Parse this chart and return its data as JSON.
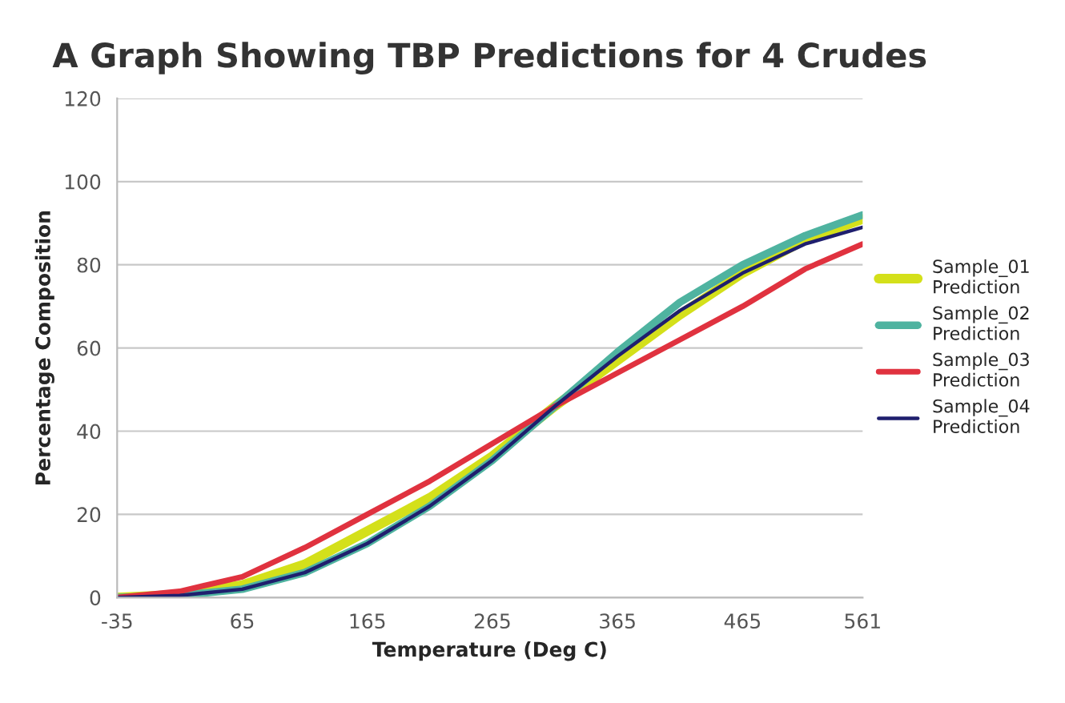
{
  "chart_data": {
    "type": "line",
    "title": "A Graph Showing TBP Predictions for 4 Crudes",
    "xlabel": "Temperature (Deg C)",
    "ylabel": "Percentage Composition",
    "x": [
      -35,
      15,
      65,
      115,
      165,
      215,
      265,
      315,
      365,
      415,
      465,
      515,
      561
    ],
    "series": [
      {
        "name": "Sample_01\nPrediction",
        "color": "#d4e01a",
        "values": [
          0,
          0.7,
          3,
          8,
          16,
          24,
          34,
          46,
          57,
          68,
          78,
          86,
          91
        ]
      },
      {
        "name": "Sample_02\nPrediction",
        "color": "#4fb3a0",
        "values": [
          0,
          0.5,
          2,
          6,
          13,
          22,
          33,
          46,
          59,
          71,
          80,
          87,
          92
        ]
      },
      {
        "name": "Sample_03\nPrediction",
        "color": "#e0323f",
        "values": [
          0,
          1.5,
          5,
          12,
          20,
          28,
          37,
          46,
          54,
          62,
          70,
          79,
          85
        ]
      },
      {
        "name": "Sample_04\nPrediction",
        "color": "#1f1f6e",
        "values": [
          0,
          0.5,
          2,
          6,
          13,
          22,
          33,
          46,
          58,
          69,
          78,
          85,
          89
        ]
      }
    ],
    "xlim": [
      -35,
      561
    ],
    "xticks": [
      -35,
      65,
      165,
      265,
      365,
      465,
      561
    ],
    "ylim": [
      0,
      120
    ],
    "yticks": [
      0,
      20,
      40,
      60,
      80,
      100,
      120
    ],
    "grid": "y",
    "legend": "right",
    "line_style": "solid",
    "marker": "none"
  }
}
